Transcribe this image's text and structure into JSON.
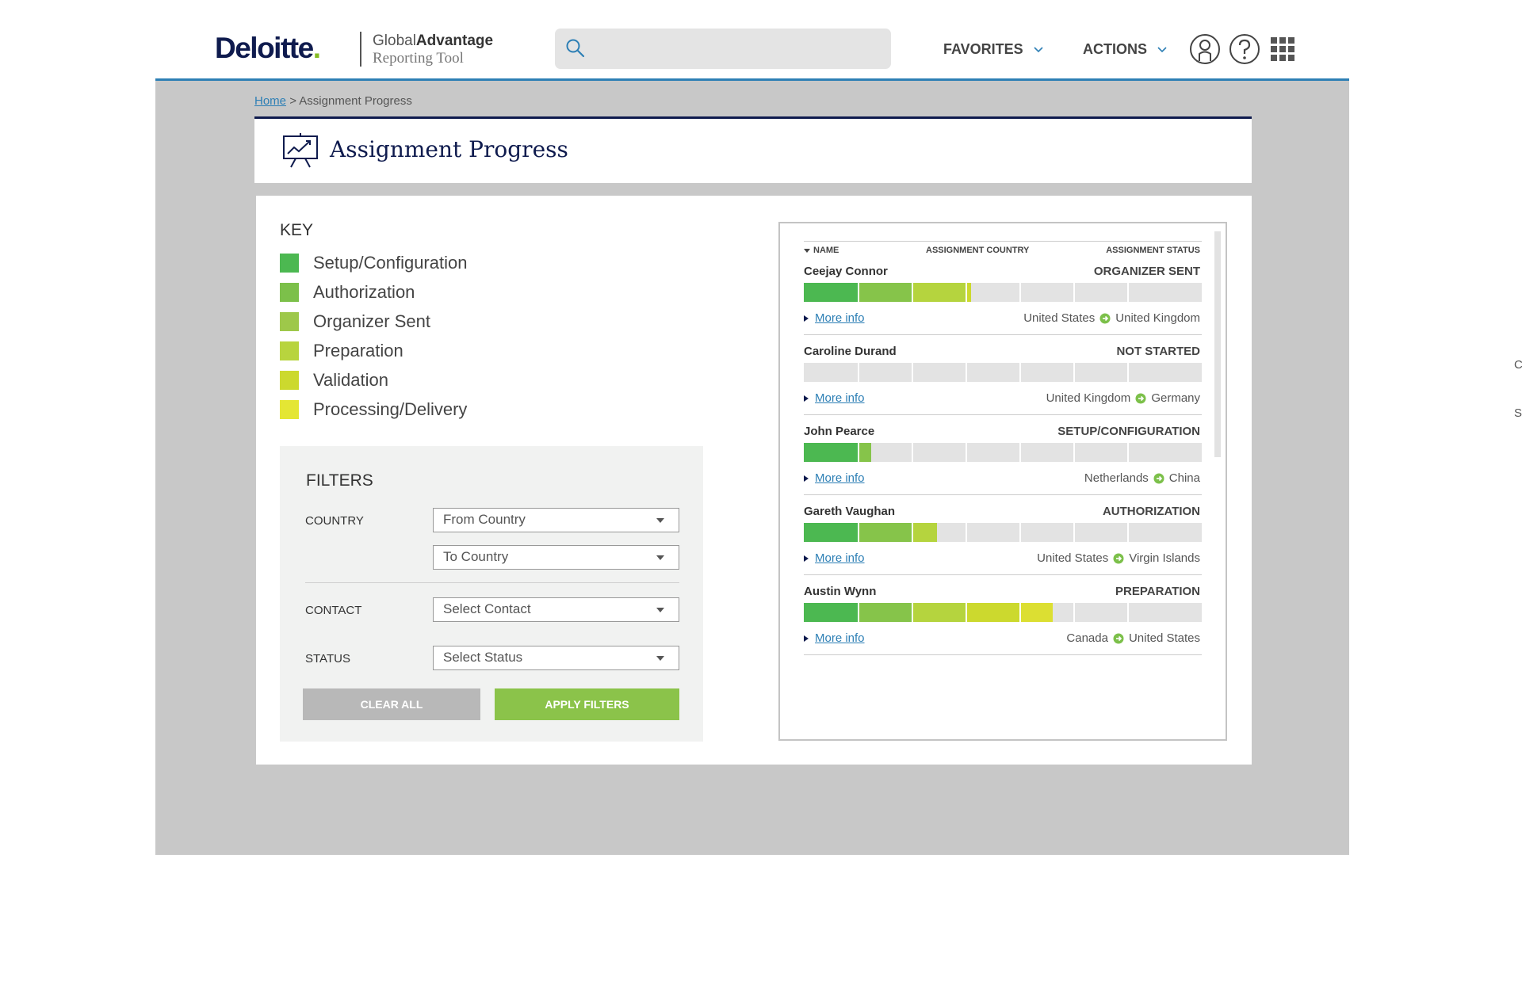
{
  "header": {
    "brand": "Deloitte",
    "brand_dot": ".",
    "product_line1_a": "Global",
    "product_line1_b": "Advantage",
    "product_line2": "Reporting Tool",
    "search": {
      "placeholder": ""
    },
    "favorites_label": "FAVORITES",
    "actions_label": "ACTIONS"
  },
  "breadcrumb": {
    "home": "Home",
    "separator": ">",
    "current": "Assignment Progress"
  },
  "page_title": "Assignment Progress",
  "key": {
    "title": "KEY",
    "items": [
      {
        "label": "Setup/Configuration",
        "color": "#4cb851"
      },
      {
        "label": "Authorization",
        "color": "#7cc04a"
      },
      {
        "label": "Organizer Sent",
        "color": "#9ec84a"
      },
      {
        "label": "Preparation",
        "color": "#b8d43e"
      },
      {
        "label": "Validation",
        "color": "#ccd92e"
      },
      {
        "label": "Processing/Delivery",
        "color": "#e4e634"
      }
    ]
  },
  "filters": {
    "title": "FILTERS",
    "country_label": "COUNTRY",
    "from_country": "From Country",
    "to_country": "To Country",
    "contact_label": "CONTACT",
    "contact_value": "Select Contact",
    "status_label": "STATUS",
    "status_value": "Select Status",
    "clear_label": "CLEAR ALL",
    "apply_label": "APPLY FILTERS"
  },
  "table": {
    "columns": {
      "name": "NAME",
      "country": "ASSIGNMENT COUNTRY",
      "status": "ASSIGNMENT STATUS"
    },
    "more_info_label": "More info",
    "rows": [
      {
        "name": "Ceejay Connor",
        "status": "ORGANIZER SENT",
        "from": "United States",
        "to": "United Kingdom",
        "progress": 0.42
      },
      {
        "name": "Caroline Durand",
        "status": "NOT STARTED",
        "from": "United Kingdom",
        "to": "Germany",
        "progress": 0
      },
      {
        "name": "John Pearce",
        "status": "SETUP/CONFIGURATION",
        "from": "Netherlands",
        "to": "China",
        "progress": 0.17
      },
      {
        "name": "Gareth Vaughan",
        "status": "AUTHORIZATION",
        "from": "United States",
        "to": "Virgin Islands",
        "progress": 0.335
      },
      {
        "name": "Austin Wynn",
        "status": "PREPARATION",
        "from": "Canada",
        "to": "United States",
        "progress": 0.625
      }
    ]
  },
  "stage_colors": [
    "#4cb851",
    "#86c44a",
    "#b5d43e",
    "#ccd92e",
    "#dcdf32",
    "#e4e634"
  ],
  "edge_text": {
    "c": "C",
    "s": "S"
  }
}
